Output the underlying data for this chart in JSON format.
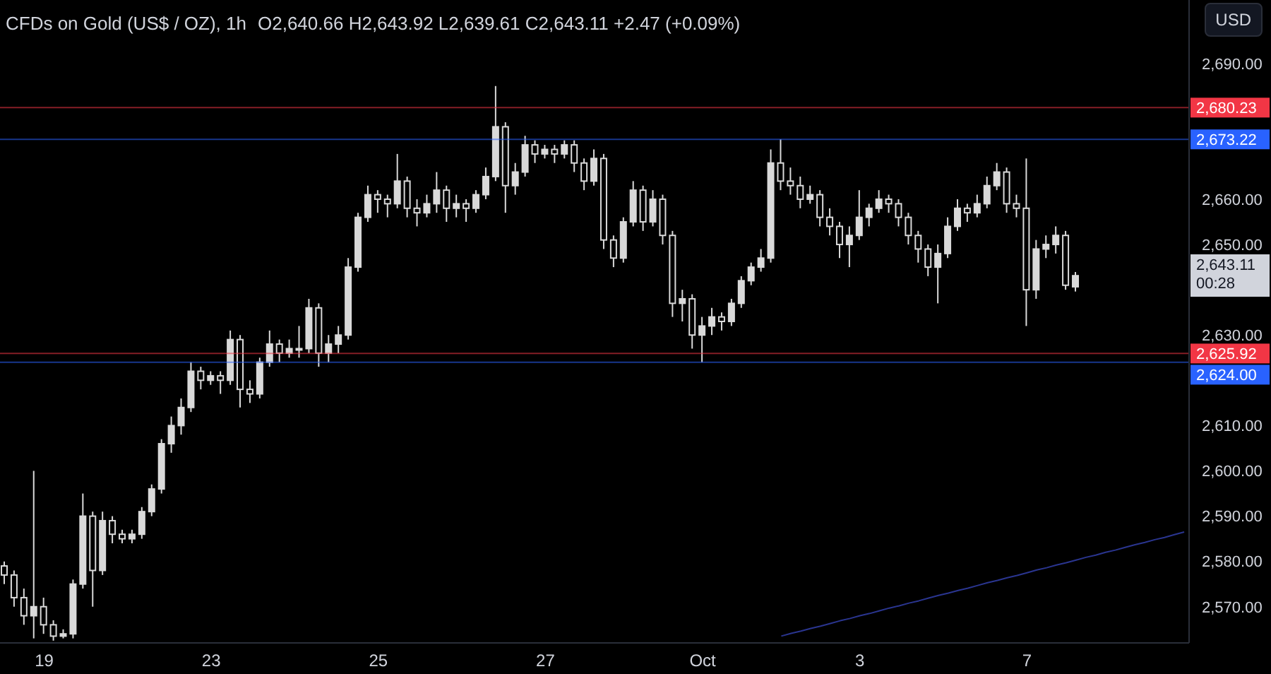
{
  "chart_data": {
    "type": "candlestick",
    "title": "CFDs on Gold (US$ / OZ), 1h",
    "subtitle": "O2,640.66  H2,643.92  L2,639.61  C2,643.11  +2.47 (+0.09%)",
    "color": "#d9d9d9",
    "categories": [
      null,
      null,
      null,
      null,
      "19",
      null,
      null,
      null,
      null,
      null,
      null,
      null,
      null,
      null,
      null,
      null,
      null,
      null,
      null,
      null,
      null,
      "23",
      null,
      null,
      null,
      null,
      null,
      null,
      null,
      null,
      null,
      null,
      null,
      null,
      null,
      null,
      null,
      null,
      "25",
      null,
      null,
      null,
      null,
      null,
      null,
      null,
      null,
      null,
      null,
      null,
      null,
      null,
      null,
      null,
      null,
      "27",
      null,
      null,
      null,
      null,
      null,
      null,
      null,
      null,
      null,
      null,
      null,
      null,
      null,
      null,
      null,
      "Oct",
      null,
      null,
      null,
      null,
      null,
      null,
      null,
      null,
      null,
      null,
      null,
      null,
      null,
      null,
      null,
      "3",
      null,
      null,
      null,
      null,
      null,
      null,
      null,
      null,
      null,
      null,
      null,
      null,
      null,
      null,
      null,
      null,
      "7",
      null,
      null,
      null,
      null,
      null,
      null,
      null,
      null,
      null,
      null,
      null,
      null,
      null,
      null,
      null,
      null
    ],
    "ohlc": [
      [
        2579,
        2580,
        2575,
        2577
      ],
      [
        2577,
        2578,
        2570,
        2572
      ],
      [
        2572,
        2574,
        2566,
        2568
      ],
      [
        2568,
        2600,
        2563,
        2570
      ],
      [
        2570,
        2572,
        2564,
        2566
      ],
      [
        2566,
        2567,
        2562.5,
        2563.5
      ],
      [
        2563.5,
        2565,
        2563,
        2564
      ],
      [
        2564,
        2576,
        2563,
        2575
      ],
      [
        2575,
        2595,
        2574,
        2590
      ],
      [
        2590,
        2591,
        2570,
        2578
      ],
      [
        2578,
        2591,
        2577,
        2589
      ],
      [
        2589,
        2590,
        2584,
        2586
      ],
      [
        2586,
        2587,
        2584,
        2585
      ],
      [
        2585,
        2587,
        2584,
        2586
      ],
      [
        2586,
        2592,
        2585,
        2591
      ],
      [
        2591,
        2597,
        2590,
        2596
      ],
      [
        2596,
        2607,
        2595,
        2606
      ],
      [
        2606,
        2612,
        2604,
        2610
      ],
      [
        2610,
        2616,
        2608,
        2614
      ],
      [
        2614,
        2624,
        2613,
        2622
      ],
      [
        2622,
        2623,
        2618,
        2620
      ],
      [
        2620,
        2622,
        2619,
        2621
      ],
      [
        2621,
        2622,
        2617,
        2620
      ],
      [
        2620,
        2631,
        2619,
        2629
      ],
      [
        2629,
        2630,
        2614,
        2618
      ],
      [
        2618,
        2620,
        2615,
        2617
      ],
      [
        2617,
        2625,
        2616,
        2624
      ],
      [
        2624,
        2631,
        2623,
        2628
      ],
      [
        2628,
        2629,
        2624,
        2626
      ],
      [
        2626,
        2629,
        2625,
        2627
      ],
      [
        2627,
        2632,
        2625,
        2627
      ],
      [
        2627,
        2638,
        2626,
        2636
      ],
      [
        2636,
        2637,
        2623,
        2626
      ],
      [
        2626,
        2630,
        2624,
        2628
      ],
      [
        2628,
        2632,
        2626,
        2630
      ],
      [
        2630,
        2647,
        2629,
        2645
      ],
      [
        2645,
        2657,
        2644,
        2656
      ],
      [
        2656,
        2663,
        2655,
        2661
      ],
      [
        2661,
        2662,
        2657,
        2660
      ],
      [
        2660,
        2661,
        2656,
        2659
      ],
      [
        2659,
        2670,
        2658,
        2664
      ],
      [
        2664,
        2665,
        2656,
        2658
      ],
      [
        2658,
        2660,
        2654,
        2657
      ],
      [
        2657,
        2661,
        2656,
        2659
      ],
      [
        2659,
        2666,
        2657,
        2662
      ],
      [
        2662,
        2663,
        2655,
        2658
      ],
      [
        2658,
        2661,
        2656,
        2659
      ],
      [
        2659,
        2660,
        2655,
        2658
      ],
      [
        2658,
        2662,
        2657,
        2661
      ],
      [
        2661,
        2667,
        2660,
        2665
      ],
      [
        2665,
        2685,
        2664,
        2676
      ],
      [
        2676,
        2677,
        2657,
        2663
      ],
      [
        2663,
        2668,
        2661,
        2666
      ],
      [
        2666,
        2674,
        2665,
        2672
      ],
      [
        2672,
        2673,
        2668,
        2670
      ],
      [
        2670,
        2672,
        2669,
        2671
      ],
      [
        2671,
        2672,
        2668,
        2670
      ],
      [
        2670,
        2673,
        2669,
        2672
      ],
      [
        2672,
        2673,
        2666,
        2668
      ],
      [
        2668,
        2669,
        2662,
        2664
      ],
      [
        2664,
        2671,
        2663,
        2669
      ],
      [
        2669,
        2670,
        2649,
        2651
      ],
      [
        2651,
        2652,
        2645,
        2647
      ],
      [
        2647,
        2656,
        2646,
        2655
      ],
      [
        2655,
        2664,
        2654,
        2662
      ],
      [
        2662,
        2663,
        2653,
        2655
      ],
      [
        2655,
        2662,
        2654,
        2660
      ],
      [
        2660,
        2661,
        2650,
        2652
      ],
      [
        2652,
        2653,
        2634,
        2637
      ],
      [
        2637,
        2640,
        2633,
        2638
      ],
      [
        2638,
        2639,
        2627,
        2630
      ],
      [
        2630,
        2634,
        2624,
        2632
      ],
      [
        2632,
        2636,
        2630,
        2634
      ],
      [
        2634,
        2635,
        2631,
        2633
      ],
      [
        2633,
        2638,
        2632,
        2637
      ],
      [
        2637,
        2643,
        2636,
        2642
      ],
      [
        2642,
        2646,
        2641,
        2645
      ],
      [
        2645,
        2649,
        2644,
        2647
      ],
      [
        2647,
        2671,
        2646,
        2668
      ],
      [
        2668,
        2673.22,
        2662,
        2664
      ],
      [
        2664,
        2667,
        2661,
        2663
      ],
      [
        2663,
        2665,
        2658,
        2660
      ],
      [
        2660,
        2663,
        2659,
        2661
      ],
      [
        2661,
        2662,
        2654,
        2656
      ],
      [
        2656,
        2658,
        2652,
        2654
      ],
      [
        2654,
        2655,
        2647,
        2650
      ],
      [
        2650,
        2654,
        2645,
        2652
      ],
      [
        2652,
        2662,
        2651,
        2656
      ],
      [
        2656,
        2659,
        2654,
        2658
      ],
      [
        2658,
        2662,
        2657,
        2660
      ],
      [
        2660,
        2661,
        2657,
        2659
      ],
      [
        2659,
        2660,
        2654,
        2656
      ],
      [
        2656,
        2657,
        2650,
        2652
      ],
      [
        2652,
        2653,
        2646,
        2649
      ],
      [
        2649,
        2650,
        2643,
        2645
      ],
      [
        2645,
        2650,
        2637,
        2648
      ],
      [
        2648,
        2656,
        2647,
        2654
      ],
      [
        2654,
        2660,
        2653,
        2658
      ],
      [
        2658,
        2659,
        2655,
        2657
      ],
      [
        2657,
        2661,
        2656,
        2659
      ],
      [
        2659,
        2665,
        2658,
        2663
      ],
      [
        2663,
        2668,
        2662,
        2666
      ],
      [
        2666,
        2667,
        2657,
        2659
      ],
      [
        2659,
        2661,
        2656,
        2658
      ],
      [
        2658,
        2669,
        2632,
        2640
      ],
      [
        2640,
        2651,
        2638,
        2649
      ],
      [
        2649,
        2652,
        2647,
        2650
      ],
      [
        2650,
        2654,
        2648,
        2652
      ],
      [
        2652,
        2653,
        2640,
        2641
      ],
      [
        2640.66,
        2643.92,
        2639.61,
        2643.11
      ],
      null,
      null,
      null,
      null,
      null,
      null,
      null,
      null,
      null,
      null,
      null
    ],
    "series": [
      {
        "type": "line",
        "color": "#2a3590",
        "values": [
          null,
          null,
          null,
          null,
          null,
          null,
          null,
          null,
          null,
          null,
          null,
          null,
          null,
          null,
          null,
          null,
          null,
          null,
          null,
          null,
          null,
          null,
          null,
          null,
          null,
          null,
          null,
          null,
          null,
          null,
          null,
          null,
          null,
          null,
          null,
          null,
          null,
          null,
          null,
          null,
          null,
          null,
          null,
          null,
          null,
          null,
          null,
          null,
          null,
          null,
          null,
          null,
          null,
          null,
          null,
          null,
          null,
          null,
          null,
          null,
          null,
          null,
          null,
          null,
          null,
          null,
          null,
          null,
          null,
          null,
          null,
          null,
          null,
          null,
          null,
          null,
          null,
          null,
          null,
          2563.5,
          2564.1,
          2564.6,
          2565.2,
          2565.7,
          2566.3,
          2566.9,
          2567.4,
          2568,
          2568.5,
          2569.1,
          2569.7,
          2570.2,
          2570.8,
          2571.3,
          2571.9,
          2572.5,
          2573,
          2573.6,
          2574.1,
          2574.7,
          2575.3,
          2575.8,
          2576.4,
          2576.9,
          2577.5,
          2578.1,
          2578.6,
          2579.2,
          2579.7,
          2580.3,
          2580.9,
          2581.4,
          2582,
          2582.5,
          2583.1,
          2583.7,
          2584.2,
          2584.8,
          2585.3,
          2585.9,
          2586.5
        ]
      }
    ],
    "ylim": [
      2562,
      2704
    ],
    "yticks": [
      {
        "value": 2570,
        "label": "2,570.00"
      },
      {
        "value": 2580,
        "label": "2,580.00"
      },
      {
        "value": 2590,
        "label": "2,590.00"
      },
      {
        "value": 2600,
        "label": "2,600.00"
      },
      {
        "value": 2610,
        "label": "2,610.00"
      },
      {
        "value": 2630,
        "label": "2,630.00"
      },
      {
        "value": 2650,
        "label": "2,650.00"
      },
      {
        "value": 2660,
        "label": "2,660.00"
      },
      {
        "value": 2690,
        "label": "2,690.00"
      }
    ],
    "ref_lines": [
      {
        "axis": "y",
        "value": 2680.23,
        "label": "2,680.23",
        "color": "#f23645"
      },
      {
        "axis": "y",
        "value": 2673.22,
        "label": "2,673.22",
        "color": "#2962ff"
      },
      {
        "axis": "y",
        "value": 2625.92,
        "label": "2,625.92",
        "color": "#f23645"
      },
      {
        "axis": "y",
        "value": 2624,
        "label": "2,624.00",
        "color": "#2962ff"
      }
    ],
    "annotations": [
      "2,643.11",
      "00:28",
      "USD"
    ]
  }
}
